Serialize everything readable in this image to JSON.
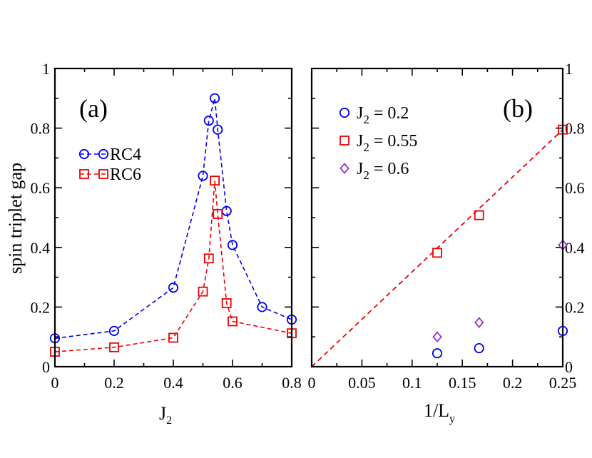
{
  "chart_data": [
    {
      "panel": "(a)",
      "type": "line",
      "xlabel": "J",
      "xlabel_sub": "2",
      "ylabel": "spin triplet gap",
      "xlim": [
        0,
        0.8
      ],
      "ylim": [
        0,
        1
      ],
      "xticks": [
        0,
        0.2,
        0.4,
        0.6,
        0.8
      ],
      "xticklabels": [
        "0",
        "0.2",
        "0.4",
        "0.6",
        "0.8"
      ],
      "yticks": [
        0,
        0.2,
        0.4,
        0.6,
        0.8,
        1
      ],
      "yticklabels": [
        "0",
        "0.2",
        "0.4",
        "0.6",
        "0.8",
        "1"
      ],
      "legend_position": "upper-left",
      "series": [
        {
          "name": "RC4",
          "marker": "circle",
          "color": "#0000ee",
          "line": "dashed",
          "x": [
            0,
            0.2,
            0.4,
            0.5,
            0.52,
            0.54,
            0.55,
            0.58,
            0.6,
            0.7,
            0.8
          ],
          "y": [
            0.095,
            0.12,
            0.265,
            0.64,
            0.825,
            0.9,
            0.795,
            0.522,
            0.408,
            0.2,
            0.158
          ]
        },
        {
          "name": "RC6",
          "marker": "square",
          "color": "#ee0000",
          "line": "dashed",
          "x": [
            0,
            0.2,
            0.4,
            0.5,
            0.52,
            0.54,
            0.55,
            0.58,
            0.6,
            0.8
          ],
          "y": [
            0.05,
            0.065,
            0.097,
            0.252,
            0.363,
            0.624,
            0.512,
            0.213,
            0.152,
            0.112
          ]
        }
      ]
    },
    {
      "panel": "(b)",
      "type": "scatter",
      "xlabel": "1/L",
      "xlabel_sub": "y",
      "xlim": [
        0,
        0.25
      ],
      "ylim": [
        0,
        1
      ],
      "xticks": [
        0,
        0.05,
        0.1,
        0.15,
        0.2,
        0.25
      ],
      "xticklabels": [
        "0",
        "0.05",
        "0.1",
        "0.15",
        "0.2",
        "0.25"
      ],
      "yticks": [
        0,
        0.2,
        0.4,
        0.6,
        0.8,
        1
      ],
      "yticklabels": [
        "0",
        "0.2",
        "0.4",
        "0.6",
        "0.8",
        "1"
      ],
      "yaxis_side": "right",
      "legend_position": "upper-left",
      "series": [
        {
          "name_main": "J",
          "name_sub": "2",
          "name_rest": " = 0.2",
          "marker": "circle",
          "color": "#0000ee",
          "x": [
            0.125,
            0.1667,
            0.25
          ],
          "y": [
            0.045,
            0.062,
            0.12
          ]
        },
        {
          "name_main": "J",
          "name_sub": "2",
          "name_rest": " = 0.55",
          "marker": "square",
          "color": "#ee0000",
          "x": [
            0.125,
            0.1667,
            0.25
          ],
          "y": [
            0.382,
            0.508,
            0.795
          ]
        },
        {
          "name_main": "J",
          "name_sub": "2",
          "name_rest": " = 0.6",
          "marker": "diamond",
          "color": "#9933cc",
          "x": [
            0.125,
            0.1667,
            0.25
          ],
          "y": [
            0.1,
            0.148,
            0.408
          ]
        }
      ],
      "fit_line": {
        "color": "#ee0000",
        "x": [
          0,
          0.25
        ],
        "y": [
          0,
          0.795
        ]
      }
    }
  ]
}
